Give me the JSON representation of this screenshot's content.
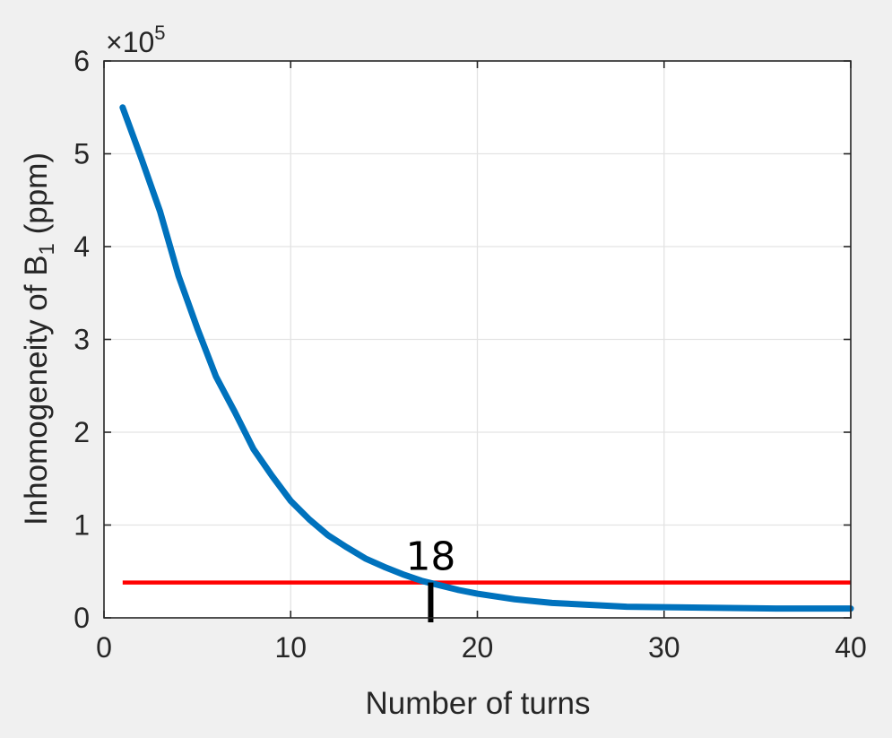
{
  "chart_data": {
    "type": "line",
    "xlabel": "Number of turns",
    "ylabel": "Inhomogeneity of B",
    "ylabel_subscript": "1",
    "ylabel_suffix": " (ppm)",
    "y_exponent_label": "×10",
    "y_exponent": "5",
    "xlim": [
      0,
      40
    ],
    "ylim": [
      0,
      6
    ],
    "x_ticks": [
      0,
      10,
      20,
      30,
      40
    ],
    "y_ticks": [
      0,
      1,
      2,
      3,
      4,
      5,
      6
    ],
    "grid": true,
    "series": [
      {
        "color": "#0072bd",
        "x": [
          1,
          2,
          3,
          4,
          5,
          6,
          7,
          8,
          9,
          10,
          11,
          12,
          13,
          14,
          15,
          16,
          17,
          18,
          19,
          20,
          22,
          24,
          26,
          28,
          30,
          32,
          34,
          36,
          38,
          40
        ],
        "y": [
          5.5,
          4.95,
          4.38,
          3.68,
          3.12,
          2.6,
          2.22,
          1.82,
          1.53,
          1.26,
          1.06,
          0.89,
          0.76,
          0.64,
          0.55,
          0.47,
          0.4,
          0.35,
          0.3,
          0.26,
          0.2,
          0.16,
          0.14,
          0.12,
          0.115,
          0.11,
          0.105,
          0.1,
          0.1,
          0.1
        ]
      }
    ],
    "threshold": {
      "y": 0.38,
      "x_start": 1,
      "x_end": 40,
      "color": "#ff0000"
    },
    "marker": {
      "x": 17.5,
      "label": "18",
      "color": "#000000"
    }
  }
}
